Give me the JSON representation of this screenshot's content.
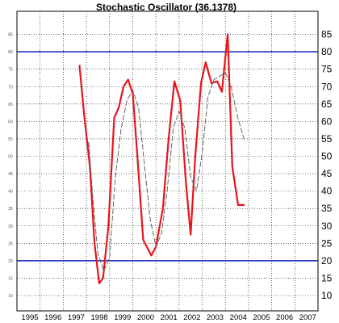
{
  "chart_data": {
    "type": "line",
    "title": "Stochastic Oscillator (36.1378)",
    "xlabel": "",
    "ylabel": "",
    "x_range": [
      1995,
      2008
    ],
    "ylim": [
      10,
      90
    ],
    "yticks": [
      10,
      15,
      20,
      25,
      30,
      35,
      40,
      45,
      50,
      55,
      60,
      65,
      70,
      75,
      80,
      85
    ],
    "xticks": [
      "1995",
      "1996",
      "1997",
      "1998",
      "1999",
      "2000",
      "2001",
      "2002",
      "2003",
      "2004",
      "2005",
      "2006",
      "2007"
    ],
    "grid": true,
    "y_axis_side": "both",
    "reference_lines": [
      {
        "value": 80,
        "color": "#0a1fb8"
      },
      {
        "value": 20,
        "color": "#0a1fb8"
      }
    ],
    "series": [
      {
        "style": "solid",
        "color": "#e8141c",
        "x": [
          1997.7,
          1997.9,
          1998.15,
          1998.35,
          1998.55,
          1998.72,
          1998.95,
          1999.2,
          1999.4,
          1999.6,
          1999.8,
          2000.0,
          2000.2,
          2000.45,
          2000.8,
          2001.0,
          2001.3,
          2001.55,
          2001.8,
          2002.05,
          2002.3,
          2002.5,
          2002.7,
          2002.95,
          2003.15,
          2003.4,
          2003.65,
          2003.85,
          2004.1,
          2004.3,
          2004.55,
          2004.8
        ],
        "values": [
          76,
          62,
          47,
          25,
          13.5,
          15,
          30,
          61,
          64,
          70,
          72,
          68,
          50,
          26,
          21.5,
          24,
          35,
          55,
          71.5,
          66,
          42,
          27.5,
          50,
          71,
          77,
          71,
          71.5,
          68.5,
          85,
          47,
          36,
          36
        ]
      },
      {
        "style": "dashed",
        "color": "#666666",
        "x": [
          1998.1,
          1998.3,
          1998.5,
          1998.75,
          1999.0,
          1999.25,
          1999.5,
          1999.75,
          2000.0,
          2000.25,
          2000.5,
          2000.75,
          2001.0,
          2001.25,
          2001.5,
          2001.75,
          2002.0,
          2002.25,
          2002.5,
          2002.75,
          2003.0,
          2003.25,
          2003.5,
          2003.75,
          2004.0,
          2004.25,
          2004.5,
          2004.8
        ],
        "values": [
          54,
          36,
          22,
          17,
          21,
          44,
          58,
          66,
          69,
          64,
          48,
          32,
          24,
          28,
          41,
          58,
          63,
          58,
          44,
          40,
          51,
          67,
          72,
          73,
          74,
          70,
          62,
          55
        ]
      }
    ]
  }
}
